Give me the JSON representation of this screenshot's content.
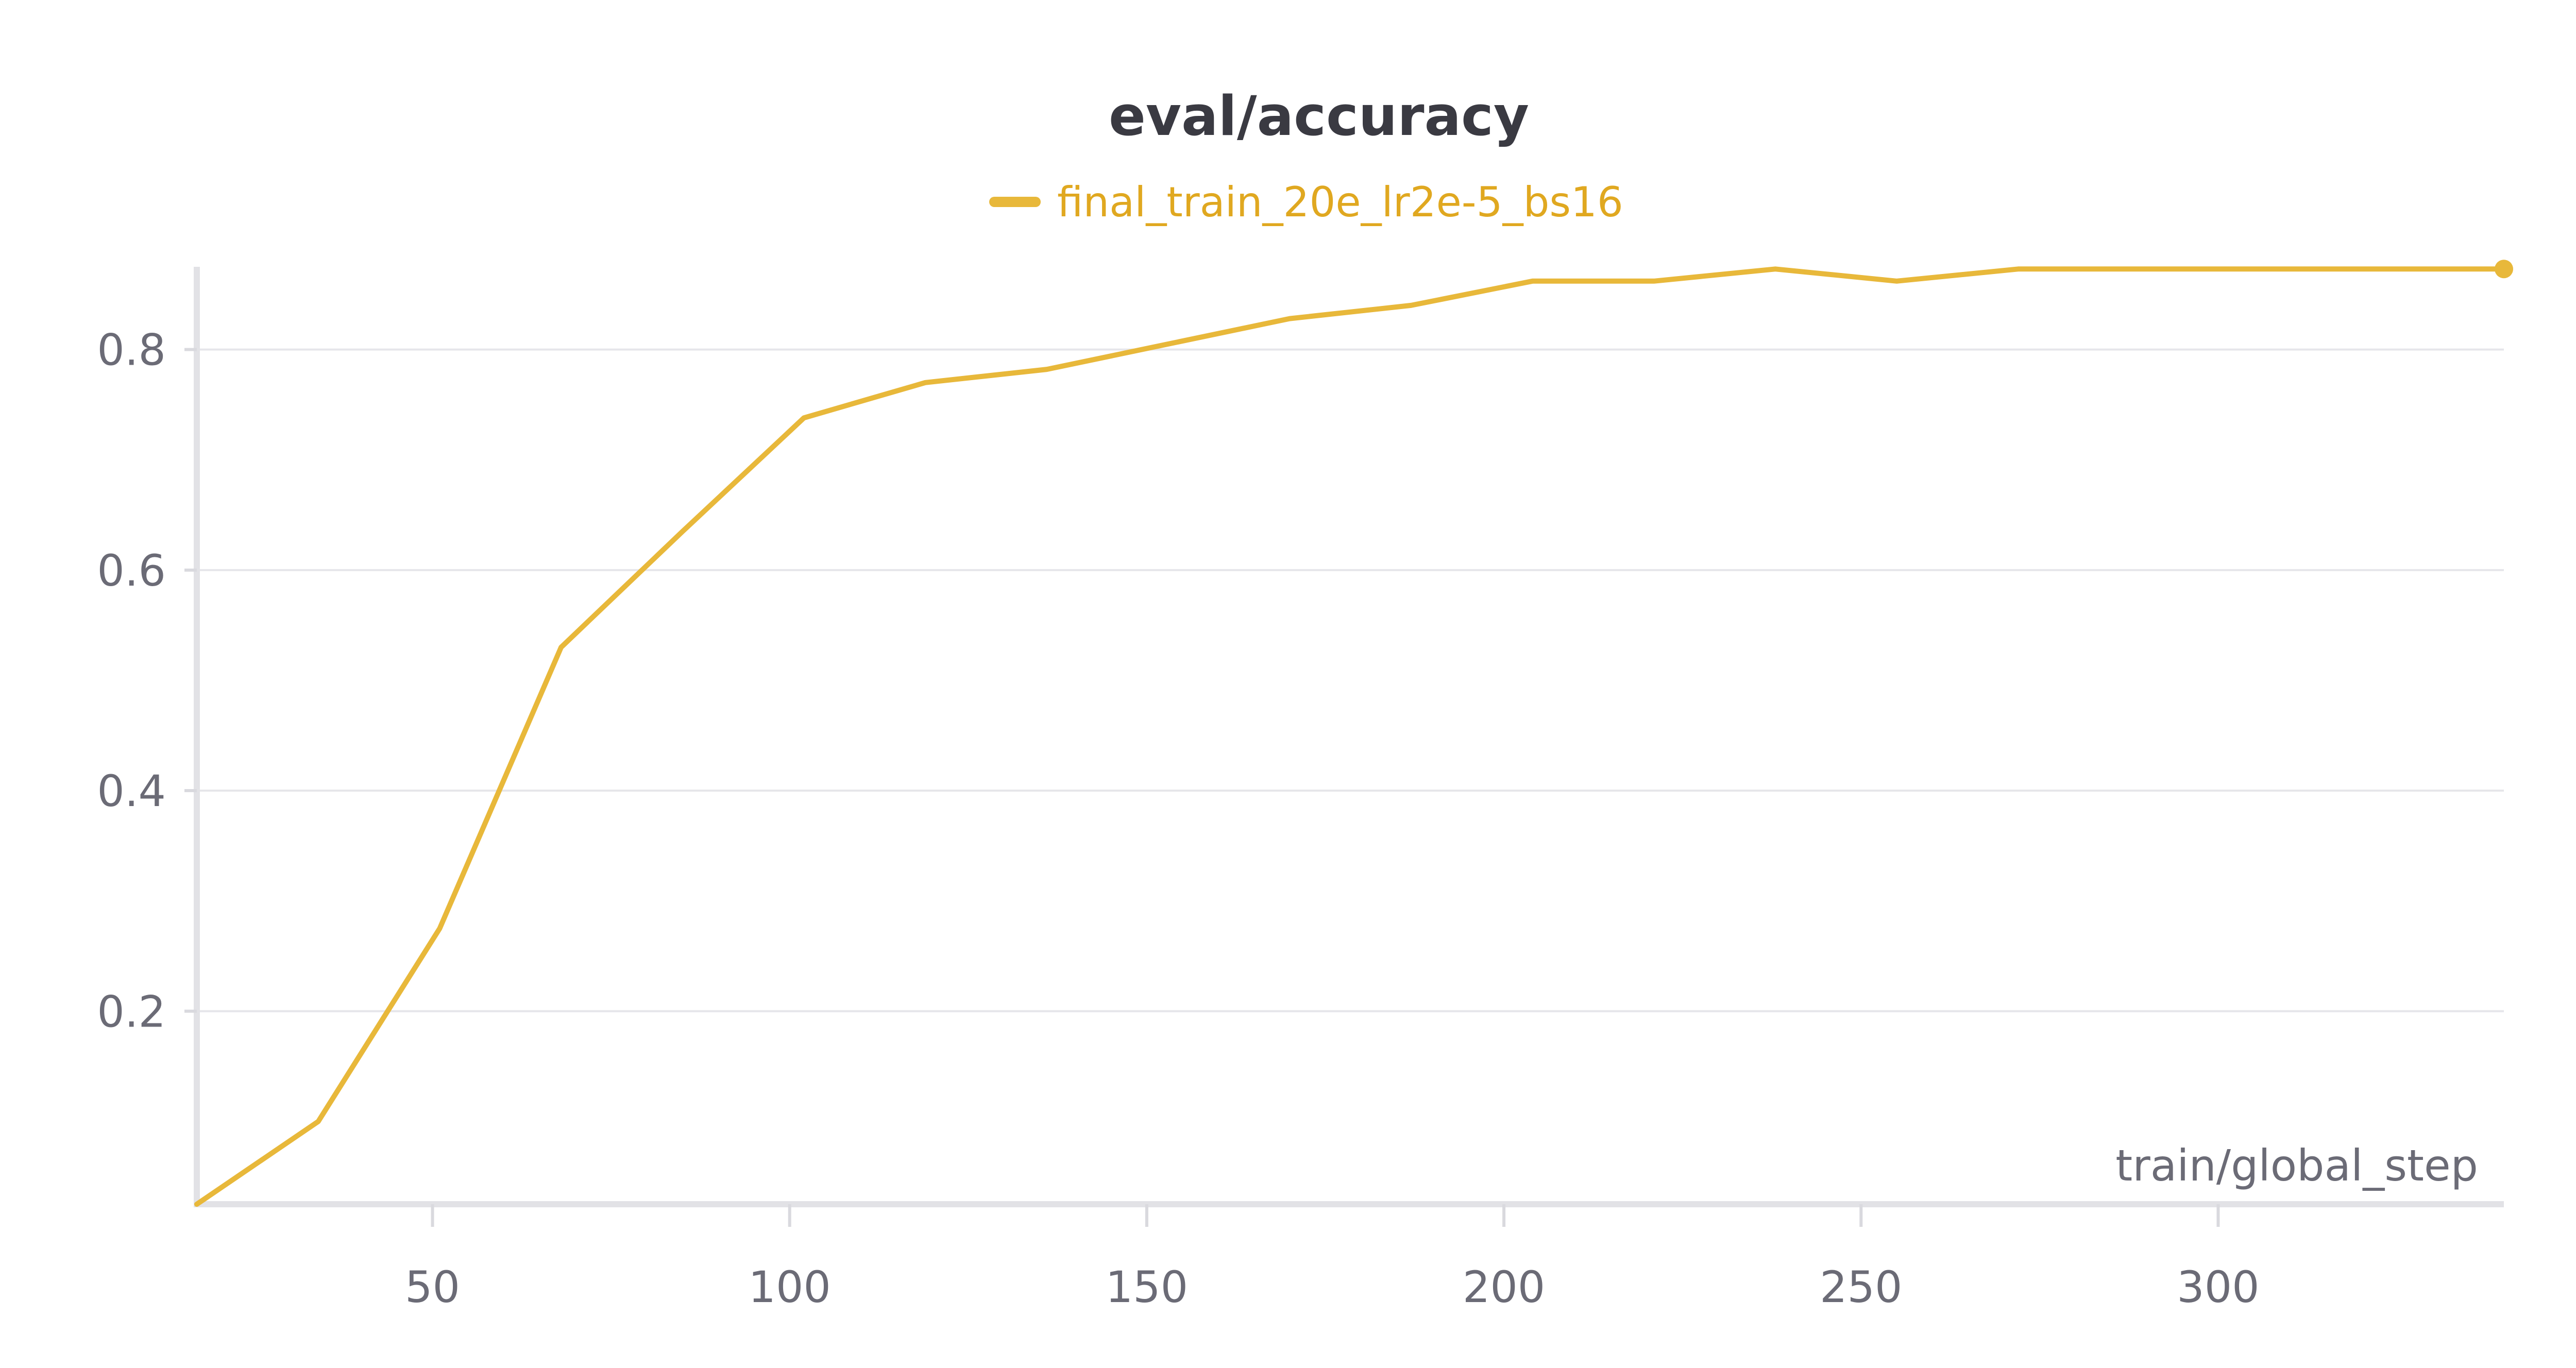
{
  "chart_data": {
    "type": "line",
    "title": "eval/accuracy",
    "xlabel": "train/global_step",
    "ylabel": "",
    "xlim": [
      17,
      340
    ],
    "ylim": [
      0.025,
      0.875
    ],
    "x_ticks": [
      50,
      100,
      150,
      200,
      250,
      300
    ],
    "y_ticks": [
      0.2,
      0.4,
      0.6,
      0.8
    ],
    "x_tick_labels": [
      "50",
      "100",
      "150",
      "200",
      "250",
      "300"
    ],
    "y_tick_labels": [
      "0.2",
      "0.4",
      "0.6",
      "0.8"
    ],
    "grid": "horizontal",
    "legend_position": "top-center",
    "series": [
      {
        "name": "final_train_20e_lr2e-5_bs16",
        "color": "#e8b83a",
        "x": [
          17,
          34,
          51,
          68,
          85,
          102,
          119,
          136,
          153,
          170,
          187,
          204,
          221,
          238,
          255,
          272,
          289,
          306,
          323,
          340
        ],
        "y": [
          0.025,
          0.1,
          0.275,
          0.53,
          0.635,
          0.738,
          0.77,
          0.782,
          0.805,
          0.828,
          0.84,
          0.862,
          0.862,
          0.873,
          0.862,
          0.873,
          0.873,
          0.873,
          0.873,
          0.873
        ]
      }
    ]
  }
}
